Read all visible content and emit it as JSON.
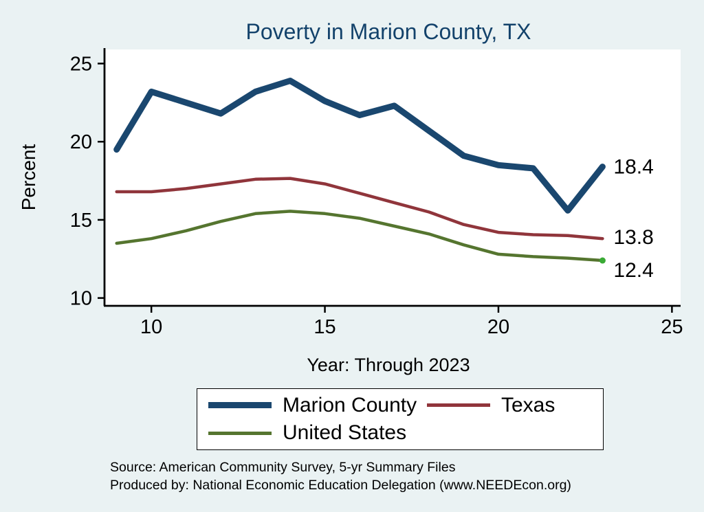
{
  "title": "Poverty in Marion County, TX",
  "x_axis_label": "Year: Through 2023",
  "y_axis_label": "Percent",
  "source": {
    "line1": "Source: American Community Survey, 5-yr Summary Files",
    "line2": "Produced by: National Economic Education Delegation (www.NEEDEcon.org)"
  },
  "legend": {
    "items": [
      {
        "label": "Marion County"
      },
      {
        "label": "Texas"
      },
      {
        "label": "United States"
      }
    ]
  },
  "chart_data": {
    "type": "line",
    "title": "Poverty in Marion County, TX",
    "xlabel": "Year: Through 2023",
    "ylabel": "Percent",
    "grid": false,
    "legend_position": "bottom",
    "x": [
      9,
      10,
      11,
      12,
      13,
      14,
      15,
      16,
      17,
      18,
      19,
      20,
      21,
      22,
      23
    ],
    "xticks": [
      10,
      15,
      20,
      25
    ],
    "yticks": [
      10,
      15,
      20,
      25
    ],
    "xlim": [
      8.65,
      25.25
    ],
    "ylim": [
      9.5,
      25.9
    ],
    "series": [
      {
        "name": "Marion County",
        "color": "#1a476f",
        "width": 9,
        "end_label": "18.4",
        "values": [
          19.5,
          23.2,
          22.5,
          21.8,
          23.2,
          23.9,
          22.6,
          21.7,
          22.3,
          20.7,
          19.1,
          18.5,
          18.3,
          15.6,
          18.4
        ]
      },
      {
        "name": "Texas",
        "color": "#90353b",
        "width": 4.5,
        "end_label": "13.8",
        "values": [
          16.8,
          16.8,
          17.0,
          17.3,
          17.6,
          17.65,
          17.3,
          16.7,
          16.1,
          15.5,
          14.7,
          14.2,
          14.05,
          14.0,
          13.8
        ]
      },
      {
        "name": "United States",
        "color": "#55752f",
        "width": 4.5,
        "end_label": "12.4",
        "end_dot": "#3aaa35",
        "values": [
          13.5,
          13.8,
          14.3,
          14.9,
          15.4,
          15.55,
          15.4,
          15.1,
          14.6,
          14.1,
          13.4,
          12.8,
          12.65,
          12.55,
          12.4
        ]
      }
    ]
  }
}
